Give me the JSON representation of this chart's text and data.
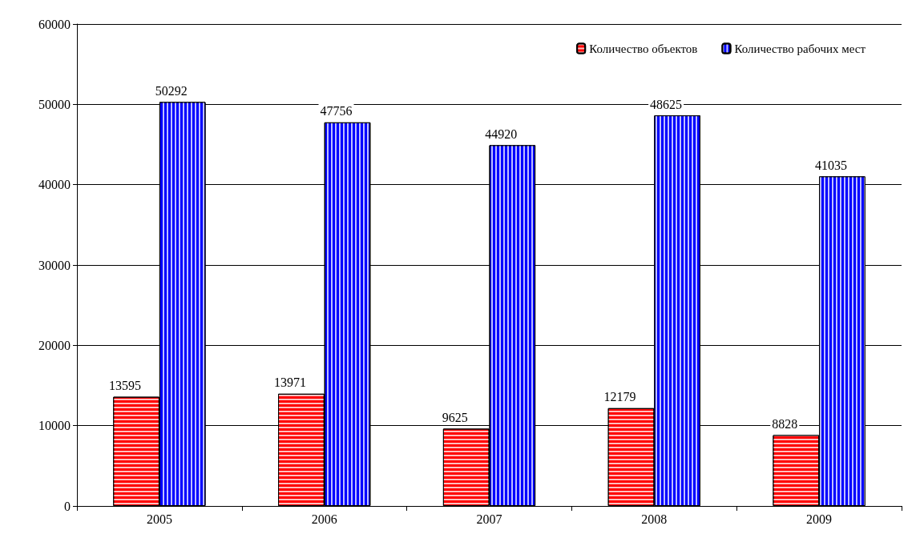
{
  "chart_data": {
    "type": "bar",
    "categories": [
      "2005",
      "2006",
      "2007",
      "2008",
      "2009"
    ],
    "series": [
      {
        "name": "Количество объектов",
        "color": "#ff0000",
        "values": [
          13595,
          13971,
          9625,
          12179,
          8828
        ]
      },
      {
        "name": "Количество рабочих мест",
        "color": "#0000ff",
        "values": [
          50292,
          47756,
          44920,
          48625,
          41035
        ]
      }
    ],
    "ylim": [
      0,
      60000
    ],
    "yticks": [
      0,
      10000,
      20000,
      30000,
      40000,
      50000,
      60000
    ],
    "grid": "y",
    "legend": "top right",
    "data_labels": true
  }
}
